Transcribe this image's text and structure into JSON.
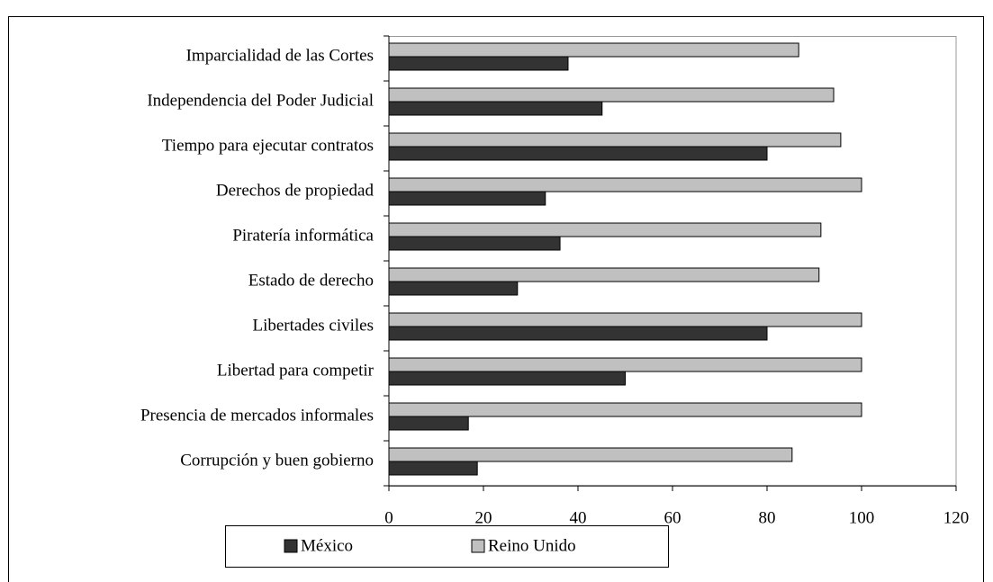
{
  "chart_data": {
    "type": "hbar",
    "categories": [
      "Imparcialidad de las Cortes",
      "Independencia del Poder Judicial",
      "Tiempo para ejecutar contratos",
      "Derechos de propiedad",
      "Piratería informática",
      "Estado de derecho",
      "Libertades civiles",
      "Libertad para competir",
      "Presencia de mercados informales",
      "Corrupción y buen gobierno"
    ],
    "series": [
      {
        "name": "México",
        "color": "#333333",
        "values": [
          37.9,
          45.1,
          80,
          33.1,
          36.2,
          27.2,
          80,
          50,
          16.8,
          18.7
        ]
      },
      {
        "name": "Reino Unido",
        "color": "#c0c0c0",
        "values": [
          86.7,
          94.1,
          95.6,
          100,
          91.4,
          91,
          100,
          100,
          100,
          85.3
        ]
      }
    ],
    "xlim": [
      0,
      120
    ],
    "xticks": [
      0,
      20,
      40,
      60,
      80,
      100,
      120
    ],
    "legend": "bottom"
  }
}
